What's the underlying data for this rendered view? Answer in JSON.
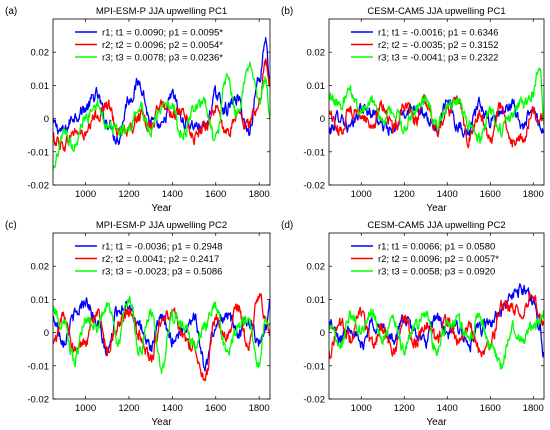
{
  "chart_data": [
    {
      "type": "line",
      "label": "(a)",
      "title": "MPI-ESM-P JJA upwelling PC1",
      "xlabel": "Year",
      "ylabel": "",
      "xlim": [
        850,
        1850
      ],
      "ylim": [
        -0.02,
        0.03
      ],
      "xticks": [
        "1000",
        "1200",
        "1400",
        "1600",
        "1800"
      ],
      "yticks": [
        "-0.02",
        "-0.01",
        "0",
        "0.01",
        "0.02"
      ],
      "legend": "top-right",
      "series": [
        {
          "name": "r1; t1 = 0.0090; p1 = 0.0095*",
          "color": "#0000ff",
          "x": [
            850,
            900,
            950,
            1000,
            1050,
            1100,
            1150,
            1200,
            1250,
            1300,
            1350,
            1400,
            1450,
            1500,
            1550,
            1600,
            1650,
            1700,
            1750,
            1800,
            1830,
            1850
          ],
          "y": [
            -0.002,
            -0.004,
            0.001,
            0.003,
            0.007,
            -0.001,
            -0.006,
            0.006,
            0.011,
            -0.001,
            -0.003,
            0.007,
            -0.001,
            -0.002,
            -0.003,
            0.007,
            0.003,
            0.006,
            -0.004,
            0.012,
            0.024,
            0.012
          ]
        },
        {
          "name": "r2; t2 = 0.0096; p2 = 0.0054*",
          "color": "#ff0000",
          "x": [
            850,
            900,
            950,
            1000,
            1050,
            1100,
            1150,
            1200,
            1250,
            1300,
            1350,
            1400,
            1450,
            1500,
            1550,
            1600,
            1650,
            1700,
            1750,
            1800,
            1830,
            1850
          ],
          "y": [
            -0.006,
            -0.008,
            -0.004,
            -0.005,
            0.001,
            0.004,
            -0.003,
            -0.004,
            0.001,
            -0.002,
            0.004,
            0.002,
            0.001,
            -0.006,
            -0.002,
            0.003,
            -0.005,
            0.001,
            -0.002,
            0.005,
            0.017,
            0.012
          ]
        },
        {
          "name": "r3; t3 = 0.0078; p3 = 0.0236*",
          "color": "#00ff00",
          "x": [
            850,
            900,
            950,
            1000,
            1050,
            1100,
            1150,
            1200,
            1250,
            1300,
            1350,
            1400,
            1450,
            1500,
            1550,
            1600,
            1650,
            1700,
            1750,
            1800,
            1830,
            1850
          ],
          "y": [
            -0.016,
            -0.005,
            -0.008,
            0.0,
            0.005,
            -0.002,
            -0.003,
            -0.004,
            0.004,
            -0.004,
            0.003,
            0.003,
            -0.005,
            0.002,
            0.004,
            -0.006,
            0.012,
            0.002,
            0.016,
            0.006,
            0.012,
            0.0
          ]
        }
      ]
    },
    {
      "type": "line",
      "label": "(b)",
      "title": "CESM-CAM5 JJA upwelling PC1",
      "xlabel": "Year",
      "ylabel": "",
      "xlim": [
        850,
        1850
      ],
      "ylim": [
        -0.02,
        0.03
      ],
      "xticks": [
        "1000",
        "1200",
        "1400",
        "1600",
        "1800"
      ],
      "yticks": [
        "-0.02",
        "-0.01",
        "0",
        "0.01",
        "0.02"
      ],
      "legend": "top-right",
      "series": [
        {
          "name": "r1; t1 = -0.0016; p1 = 0.6346",
          "color": "#0000ff",
          "x": [
            850,
            900,
            950,
            1000,
            1050,
            1100,
            1150,
            1200,
            1250,
            1300,
            1350,
            1400,
            1450,
            1500,
            1550,
            1600,
            1650,
            1700,
            1750,
            1800,
            1830,
            1850
          ],
          "y": [
            -0.004,
            0.001,
            -0.003,
            0.003,
            0.002,
            -0.002,
            -0.004,
            0.002,
            0.004,
            0.0,
            -0.003,
            0.006,
            -0.002,
            -0.004,
            0.004,
            -0.001,
            0.002,
            0.004,
            -0.002,
            0.002,
            -0.001,
            -0.004
          ]
        },
        {
          "name": "r2; t2 = -0.0035; p2 = 0.3152",
          "color": "#ff0000",
          "x": [
            850,
            900,
            950,
            1000,
            1050,
            1100,
            1150,
            1200,
            1250,
            1300,
            1350,
            1400,
            1450,
            1500,
            1550,
            1600,
            1650,
            1700,
            1750,
            1800,
            1830,
            1850
          ],
          "y": [
            0.002,
            -0.004,
            0.003,
            0.001,
            -0.002,
            0.004,
            -0.003,
            0.004,
            -0.001,
            0.005,
            -0.004,
            0.002,
            0.007,
            -0.006,
            0.001,
            -0.006,
            0.004,
            -0.008,
            -0.006,
            0.002,
            0.001,
            0.0
          ]
        },
        {
          "name": "r3; t3 = -0.0041; p3 = 0.2322",
          "color": "#00ff00",
          "x": [
            850,
            900,
            950,
            1000,
            1050,
            1100,
            1150,
            1200,
            1250,
            1300,
            1350,
            1400,
            1450,
            1500,
            1550,
            1600,
            1650,
            1700,
            1750,
            1800,
            1830,
            1850
          ],
          "y": [
            0.006,
            0.004,
            0.008,
            0.002,
            0.005,
            -0.001,
            0.003,
            -0.003,
            0.003,
            0.006,
            -0.002,
            0.004,
            0.005,
            -0.002,
            -0.006,
            0.002,
            -0.004,
            0.001,
            0.004,
            0.008,
            0.016,
            -0.002
          ]
        }
      ]
    },
    {
      "type": "line",
      "label": "(c)",
      "title": "MPI-ESM-P JJA upwelling PC2",
      "xlabel": "Year",
      "ylabel": "",
      "xlim": [
        850,
        1850
      ],
      "ylim": [
        -0.02,
        0.03
      ],
      "xticks": [
        "1000",
        "1200",
        "1400",
        "1600",
        "1800"
      ],
      "yticks": [
        "-0.02",
        "-0.01",
        "0",
        "0.01",
        "0.02"
      ],
      "legend": "top-right",
      "series": [
        {
          "name": "r1; t1 = -0.0036; p1 = 0.2948",
          "color": "#0000ff",
          "x": [
            850,
            900,
            950,
            1000,
            1050,
            1100,
            1150,
            1200,
            1250,
            1300,
            1350,
            1400,
            1450,
            1500,
            1550,
            1600,
            1650,
            1700,
            1750,
            1800,
            1830,
            1850
          ],
          "y": [
            0.004,
            -0.002,
            0.005,
            0.01,
            0.003,
            -0.006,
            0.007,
            0.009,
            0.001,
            -0.004,
            0.004,
            -0.002,
            0.001,
            0.005,
            -0.01,
            0.002,
            0.006,
            0.0,
            0.004,
            -0.003,
            0.002,
            0.01
          ]
        },
        {
          "name": "r2; t2 = 0.0041; p2 = 0.2417",
          "color": "#ff0000",
          "x": [
            850,
            900,
            950,
            1000,
            1050,
            1100,
            1150,
            1200,
            1250,
            1300,
            1350,
            1400,
            1450,
            1500,
            1550,
            1600,
            1650,
            1700,
            1750,
            1800,
            1830,
            1850
          ],
          "y": [
            -0.004,
            0.005,
            -0.006,
            -0.002,
            0.006,
            -0.005,
            0.002,
            0.006,
            -0.001,
            -0.008,
            0.003,
            0.006,
            -0.002,
            -0.004,
            -0.014,
            0.004,
            -0.002,
            0.008,
            -0.004,
            0.012,
            0.004,
            -0.001
          ]
        },
        {
          "name": "r3; t3 = -0.0023; p3 = 0.5086",
          "color": "#00ff00",
          "x": [
            850,
            900,
            950,
            1000,
            1050,
            1100,
            1150,
            1200,
            1250,
            1300,
            1350,
            1400,
            1450,
            1500,
            1550,
            1600,
            1650,
            1700,
            1750,
            1800,
            1830,
            1850
          ],
          "y": [
            0.007,
            0.002,
            -0.008,
            0.004,
            0.002,
            0.008,
            -0.002,
            0.011,
            -0.006,
            0.006,
            -0.011,
            0.005,
            0.003,
            -0.003,
            0.002,
            0.008,
            -0.006,
            0.001,
            0.004,
            -0.009,
            0.003,
            0.002
          ]
        }
      ]
    },
    {
      "type": "line",
      "label": "(d)",
      "title": "CESM-CAM5 JJA upwelling PC2",
      "xlabel": "Year",
      "ylabel": "",
      "xlim": [
        850,
        1850
      ],
      "ylim": [
        -0.02,
        0.03
      ],
      "xticks": [
        "1000",
        "1200",
        "1400",
        "1600",
        "1800"
      ],
      "yticks": [
        "-0.02",
        "-0.01",
        "0",
        "0.01",
        "0.02"
      ],
      "legend": "top-right",
      "series": [
        {
          "name": "r1; t1 = 0.0066; p1 = 0.0580",
          "color": "#0000ff",
          "x": [
            850,
            900,
            950,
            1000,
            1050,
            1100,
            1150,
            1200,
            1250,
            1300,
            1350,
            1400,
            1450,
            1500,
            1550,
            1600,
            1650,
            1700,
            1750,
            1800,
            1830,
            1850
          ],
          "y": [
            0.003,
            -0.002,
            0.002,
            -0.004,
            0.003,
            0.001,
            -0.002,
            0.004,
            0.0,
            -0.003,
            0.005,
            -0.001,
            0.002,
            -0.004,
            0.001,
            0.003,
            0.006,
            0.011,
            0.013,
            0.01,
            0.002,
            -0.006
          ]
        },
        {
          "name": "r2; t2 = 0.0096; p2 = 0.0057*",
          "color": "#ff0000",
          "x": [
            850,
            900,
            950,
            1000,
            1050,
            1100,
            1150,
            1200,
            1250,
            1300,
            1350,
            1400,
            1450,
            1500,
            1550,
            1600,
            1650,
            1700,
            1750,
            1800,
            1830,
            1850
          ],
          "y": [
            -0.006,
            0.003,
            -0.002,
            0.006,
            -0.004,
            0.002,
            -0.006,
            0.005,
            -0.003,
            0.003,
            -0.002,
            0.004,
            -0.003,
            0.002,
            -0.005,
            -0.004,
            0.008,
            0.007,
            0.006,
            0.012,
            0.005,
            0.003
          ]
        },
        {
          "name": "r3; t3 = 0.0058; p3 = 0.0920",
          "color": "#00ff00",
          "x": [
            850,
            900,
            950,
            1000,
            1050,
            1100,
            1150,
            1200,
            1250,
            1300,
            1350,
            1400,
            1450,
            1500,
            1550,
            1600,
            1650,
            1700,
            1750,
            1800,
            1830,
            1850
          ],
          "y": [
            0.002,
            -0.004,
            0.006,
            0.001,
            0.007,
            -0.003,
            0.004,
            -0.005,
            0.002,
            0.006,
            -0.006,
            0.003,
            0.004,
            -0.002,
            0.005,
            -0.004,
            -0.01,
            0.002,
            -0.002,
            0.002,
            0.004,
            0.006
          ]
        }
      ]
    }
  ]
}
